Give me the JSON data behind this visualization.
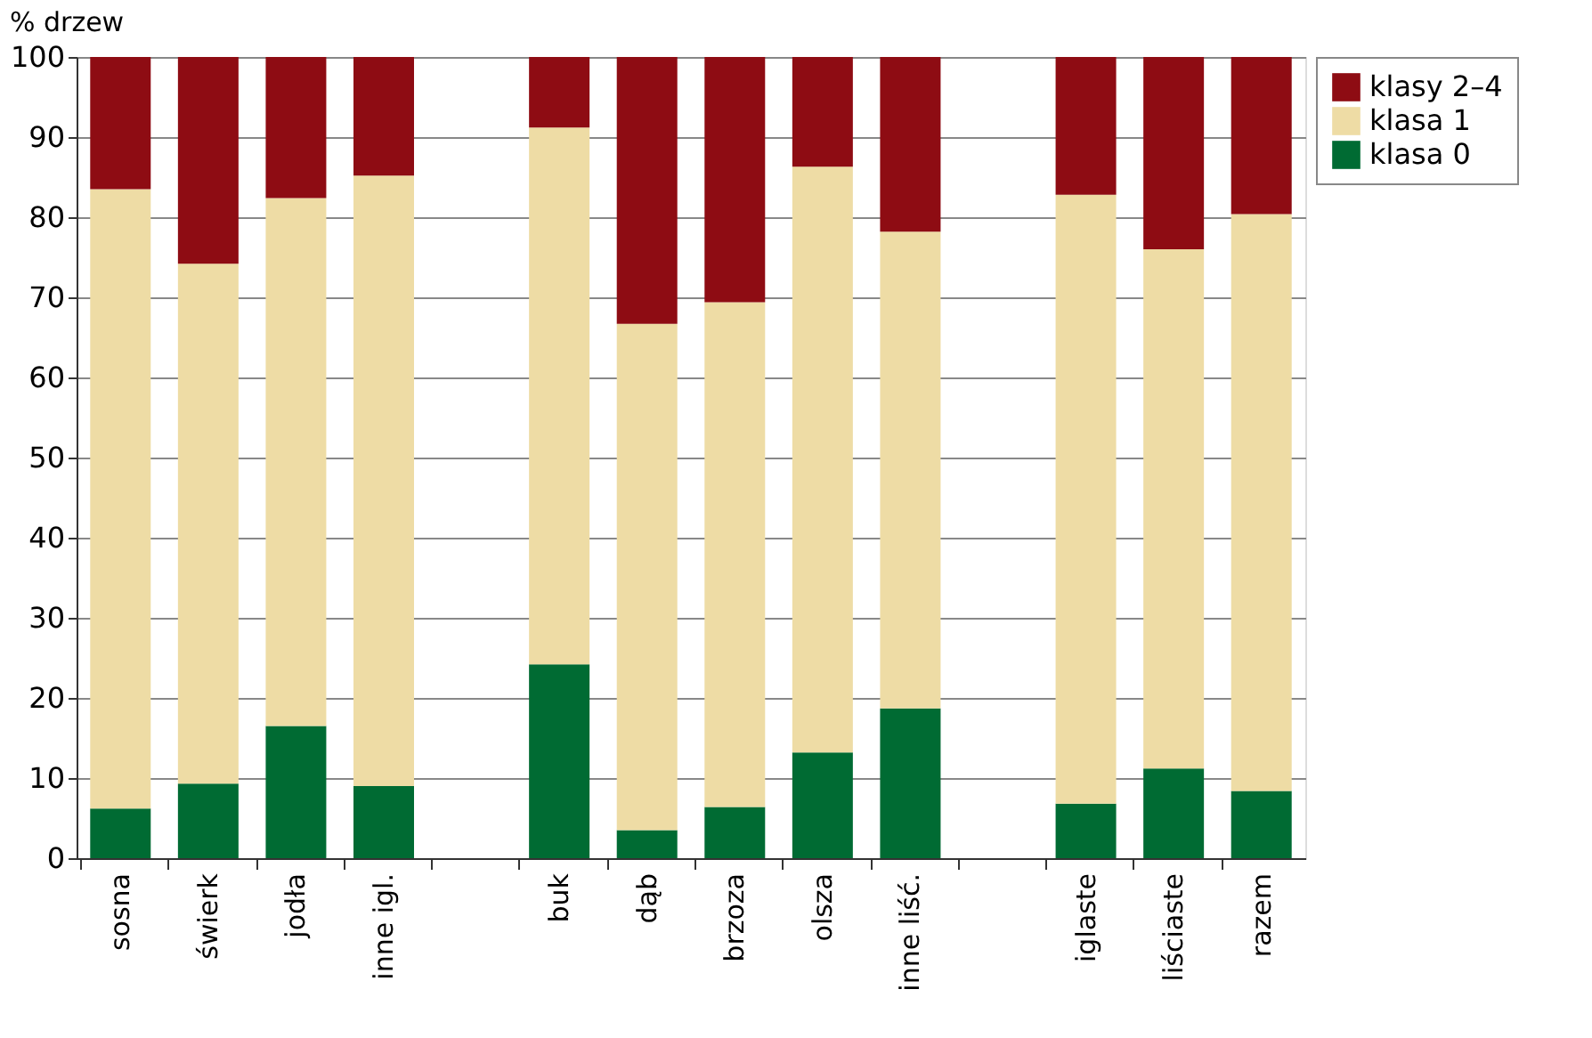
{
  "chart_data": {
    "type": "bar",
    "stacked": true,
    "ylabel": "% drzew",
    "categories": [
      "sosna",
      "świerk",
      "jodła",
      "inne igl.",
      null,
      "buk",
      "dąb",
      "brzoza",
      "olsza",
      "inne liść.",
      null,
      "iglaste",
      "liściaste",
      "razem"
    ],
    "series": [
      {
        "name": "klasa 0",
        "color": "#006b33",
        "values": [
          6.2,
          9.3,
          16.5,
          9.0,
          null,
          24.2,
          3.5,
          6.4,
          13.2,
          18.7,
          null,
          6.8,
          11.2,
          8.4
        ]
      },
      {
        "name": "klasa 1",
        "color": "#eedca5",
        "values": [
          77.3,
          64.9,
          65.9,
          76.2,
          null,
          67.0,
          63.2,
          63.0,
          73.1,
          59.5,
          null,
          76.0,
          64.8,
          72.0
        ]
      },
      {
        "name": "klasy 2–4",
        "color": "#8e0c13",
        "values": [
          16.5,
          25.8,
          17.6,
          14.8,
          null,
          8.8,
          33.3,
          30.6,
          13.7,
          21.8,
          null,
          17.2,
          24.0,
          19.6
        ]
      }
    ],
    "ylim": [
      0,
      100
    ],
    "yticks": [
      0,
      10,
      20,
      30,
      40,
      50,
      60,
      70,
      80,
      90,
      100
    ],
    "grid": "y",
    "legend": "right"
  }
}
